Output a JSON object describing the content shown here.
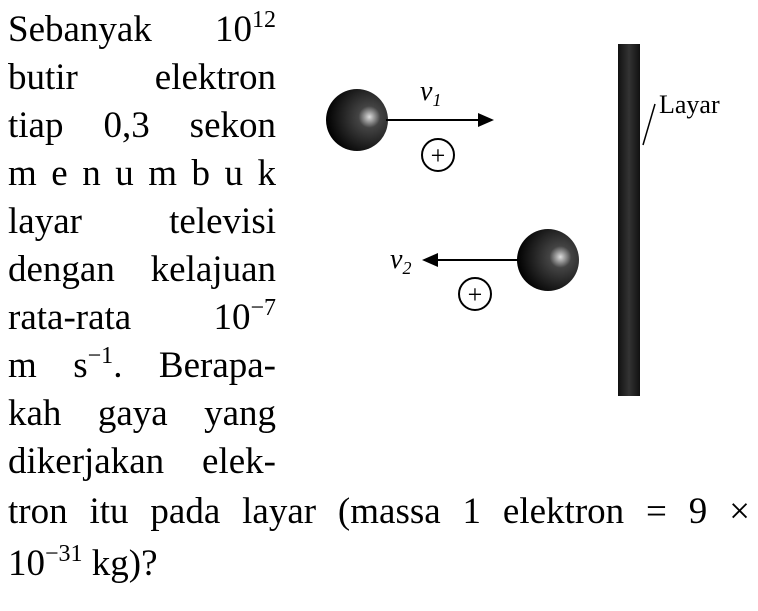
{
  "problem": {
    "lines": [
      [
        "Sebanyak 10",
        {
          "sup": "12"
        }
      ],
      [
        "butir elektron"
      ],
      [
        "tiap 0,3 sekon"
      ],
      [
        "m e n u m b u k"
      ],
      [
        "layar televisi"
      ],
      [
        "dengan kelajuan"
      ],
      [
        "rata-rata 10",
        {
          "sup": "−7"
        }
      ],
      [
        "m s",
        {
          "sup": "−1"
        },
        ". Berapa-"
      ],
      [
        "kah gaya yang"
      ],
      [
        "dikerjakan elek-"
      ],
      [
        "tron itu pada layar (massa 1 elektron = 9 ×"
      ],
      [
        "10",
        {
          "sup": "−31"
        },
        " kg)?"
      ]
    ]
  },
  "diagram": {
    "v1": {
      "text": "v",
      "sub": "1"
    },
    "v2": {
      "text": "v",
      "sub": "2"
    },
    "charge1": "+",
    "charge2": "+",
    "screen_label": "Layar"
  }
}
